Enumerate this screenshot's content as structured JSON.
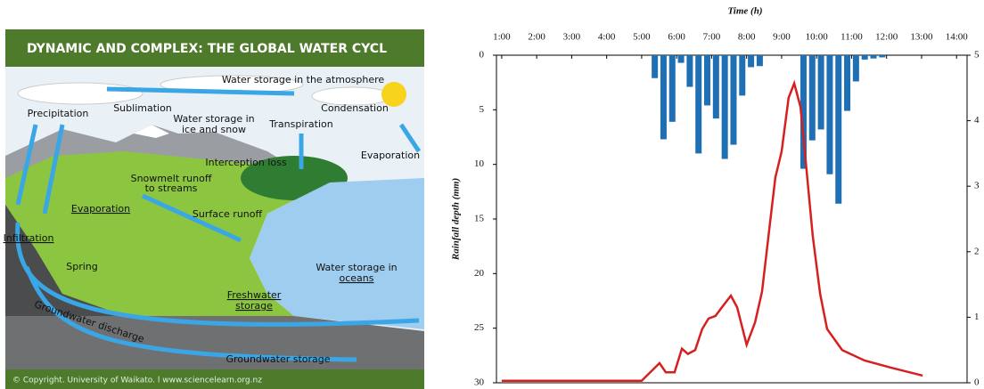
{
  "diagram": {
    "title": "DYNAMIC AND COMPLEX: THE GLOBAL WATER CYCL",
    "copyright": "© Copyright. University of Waikato. l www.sciencelearn.org.nz",
    "labels": [
      "Water storage in the atmosphere",
      "Precipitation",
      "Sublimation",
      "Water storage in",
      "ice and snow",
      "Condensation",
      "Transpiration",
      "Evaporation",
      "Interception loss",
      "Snowmelt runoff",
      "to streams",
      "Evaporation",
      "Surface runoff",
      "Infiltration",
      "Spring",
      "Water storage in",
      "oceans",
      "Freshwater",
      "storage",
      "Groundwater discharge",
      "Groundwater storage"
    ]
  },
  "chart_data": {
    "type": "bar-line",
    "x_label": "Time (h)",
    "y_label": "Rainfall depth (mm)",
    "xlim": [
      0.85,
      14.3
    ],
    "xticks": [
      {
        "value": 1,
        "label": "1:00"
      },
      {
        "value": 2,
        "label": "2:00"
      },
      {
        "value": 3,
        "label": "3:00"
      },
      {
        "value": 4,
        "label": "4:00"
      },
      {
        "value": 5,
        "label": "5:00"
      },
      {
        "value": 6,
        "label": "6:00"
      },
      {
        "value": 7,
        "label": "7:00"
      },
      {
        "value": 8,
        "label": "8:00"
      },
      {
        "value": 9,
        "label": "9:00"
      },
      {
        "value": 10,
        "label": "10:00"
      },
      {
        "value": 11,
        "label": "11:00"
      },
      {
        "value": 12,
        "label": "12:00"
      },
      {
        "value": 13,
        "label": "13:00"
      },
      {
        "value": 14,
        "label": "14:00"
      }
    ],
    "ylim": [
      0,
      30
    ],
    "yticks": [
      0,
      5,
      10,
      15,
      20,
      25,
      30
    ],
    "y_inverted": true,
    "y2lim": [
      0,
      5
    ],
    "y2ticks": [
      0,
      1,
      2,
      3,
      4,
      5
    ],
    "series": [
      {
        "kind": "bar",
        "color": "#1f6fb5",
        "x": [
          5.375,
          5.625,
          5.875,
          6.125,
          6.375,
          6.625,
          6.875,
          7.125,
          7.375,
          7.625,
          7.875,
          8.125,
          8.375,
          9.625,
          9.875,
          10.125,
          10.375,
          10.625,
          10.875,
          11.125,
          11.375,
          11.625,
          11.875
        ],
        "values": [
          2.1,
          7.7,
          6.1,
          0.7,
          2.9,
          9.0,
          4.6,
          5.8,
          9.5,
          8.2,
          3.7,
          1.1,
          1.0,
          10.4,
          7.8,
          6.8,
          10.9,
          13.6,
          5.1,
          2.4,
          0.4,
          0.3,
          0.2
        ]
      },
      {
        "kind": "line",
        "axis": "y2",
        "color": "#d62020",
        "x": [
          1.0,
          5.0,
          5.51,
          5.69,
          5.94,
          6.15,
          6.32,
          6.53,
          6.73,
          6.91,
          7.11,
          7.29,
          7.55,
          7.73,
          8.0,
          8.24,
          8.44,
          8.64,
          8.82,
          9.0,
          9.2,
          9.36,
          9.54,
          9.71,
          9.89,
          10.1,
          10.3,
          10.73,
          11.37,
          12.13,
          13.03
        ],
        "values": [
          0.03,
          0.03,
          0.3,
          0.16,
          0.16,
          0.52,
          0.44,
          0.5,
          0.82,
          0.98,
          1.02,
          1.15,
          1.33,
          1.15,
          0.58,
          0.92,
          1.39,
          2.31,
          3.13,
          3.53,
          4.35,
          4.57,
          4.21,
          3.26,
          2.24,
          1.36,
          0.82,
          0.5,
          0.34,
          0.23,
          0.11
        ]
      }
    ]
  }
}
